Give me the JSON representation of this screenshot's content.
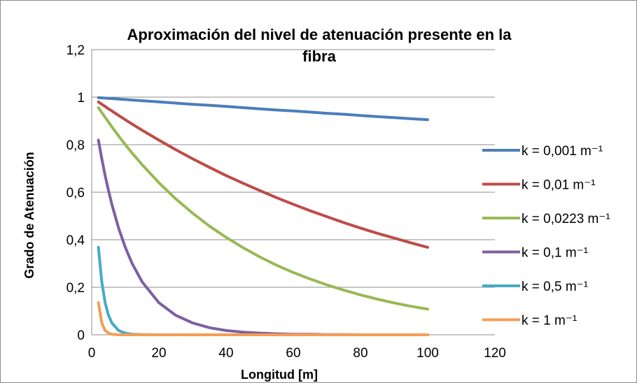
{
  "chart_data": {
    "type": "line",
    "title_line1": "Aproximación del nivel de atenuación presente en la",
    "title_line2": "fibra",
    "xlabel": "Longitud [m]",
    "ylabel": "Grado de Atenuación",
    "xlim": [
      0,
      120
    ],
    "ylim": [
      0,
      1.2
    ],
    "x_ticks": [
      "0",
      "20",
      "40",
      "60",
      "80",
      "100",
      "120"
    ],
    "y_ticks": [
      "0",
      "0,2",
      "0,4",
      "0,6",
      "0,8",
      "1",
      "1,2"
    ],
    "grid": "horizontal",
    "legend_position": "right",
    "x": [
      2,
      3,
      4,
      5,
      6,
      8,
      10,
      12,
      15,
      20,
      25,
      30,
      35,
      40,
      45,
      50,
      55,
      60,
      65,
      70,
      75,
      80,
      85,
      90,
      95,
      100
    ],
    "series": [
      {
        "name": "k = 0,001 m⁻¹",
        "k": 0.001,
        "color": "#4a7ebb",
        "values": [
          0.998,
          0.997,
          0.996,
          0.995,
          0.994,
          0.992,
          0.99,
          0.988,
          0.985,
          0.98,
          0.975,
          0.97,
          0.966,
          0.961,
          0.956,
          0.951,
          0.946,
          0.942,
          0.937,
          0.932,
          0.928,
          0.923,
          0.918,
          0.914,
          0.909,
          0.905
        ]
      },
      {
        "name": "k = 0,01 m⁻¹",
        "k": 0.01,
        "color": "#be4b48",
        "values": [
          0.98,
          0.97,
          0.961,
          0.951,
          0.942,
          0.923,
          0.905,
          0.887,
          0.861,
          0.819,
          0.779,
          0.741,
          0.705,
          0.67,
          0.638,
          0.607,
          0.577,
          0.549,
          0.522,
          0.497,
          0.472,
          0.449,
          0.427,
          0.407,
          0.387,
          0.368
        ]
      },
      {
        "name": "k = 0,0223 m⁻¹",
        "k": 0.0223,
        "color": "#98b954",
        "values": [
          0.956,
          0.935,
          0.915,
          0.895,
          0.875,
          0.837,
          0.8,
          0.765,
          0.716,
          0.64,
          0.572,
          0.512,
          0.458,
          0.41,
          0.367,
          0.328,
          0.293,
          0.262,
          0.235,
          0.21,
          0.188,
          0.168,
          0.15,
          0.134,
          0.12,
          0.108
        ]
      },
      {
        "name": "k = 0,1 m⁻¹",
        "k": 0.1,
        "color": "#7d60a0",
        "values": [
          0.819,
          0.741,
          0.67,
          0.607,
          0.549,
          0.449,
          0.368,
          0.301,
          0.223,
          0.135,
          0.082,
          0.05,
          0.03,
          0.018,
          0.011,
          0.007,
          0.004,
          0.002,
          0.002,
          0.001,
          0.001,
          0.0,
          0.0,
          0.0,
          0.0,
          0.0
        ]
      },
      {
        "name": "k = 0,5 m⁻¹",
        "k": 0.5,
        "color": "#46aac5",
        "values": [
          0.368,
          0.223,
          0.135,
          0.082,
          0.05,
          0.018,
          0.007,
          0.002,
          0.001,
          0.0,
          0.0,
          0.0,
          0.0,
          0.0,
          0.0,
          0.0,
          0.0,
          0.0,
          0.0,
          0.0,
          0.0,
          0.0,
          0.0,
          0.0,
          0.0,
          0.0
        ]
      },
      {
        "name": "k = 1 m⁻¹",
        "k": 1,
        "color": "#f59d56",
        "values": [
          0.135,
          0.05,
          0.018,
          0.007,
          0.002,
          0.0,
          0.0,
          0.0,
          0.0,
          0.0,
          0.0,
          0.0,
          0.0,
          0.0,
          0.0,
          0.0,
          0.0,
          0.0,
          0.0,
          0.0,
          0.0,
          0.0,
          0.0,
          0.0,
          0.0,
          0.0
        ]
      }
    ]
  }
}
